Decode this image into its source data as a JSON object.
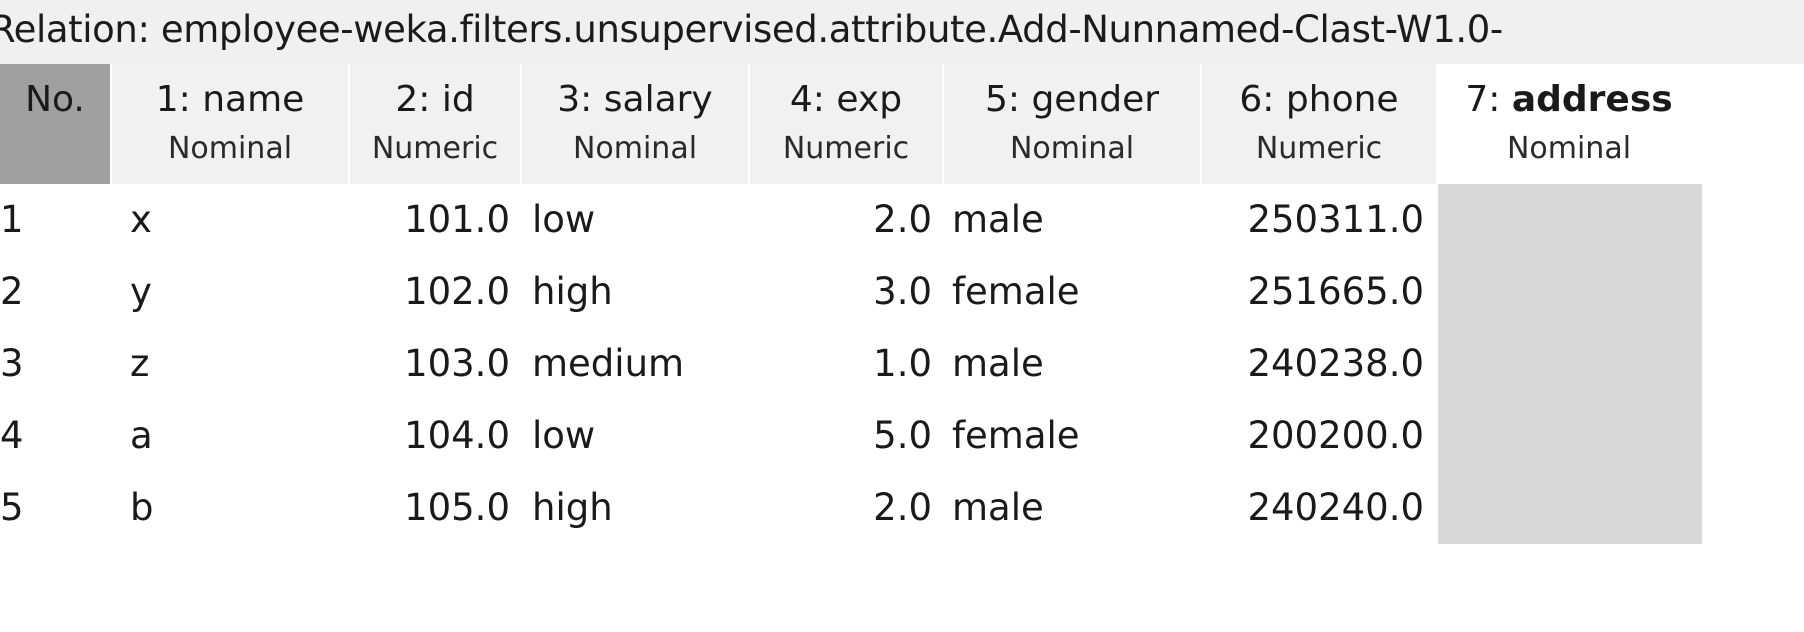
{
  "relation": {
    "label": "Relation: employee-weka.filters.unsupervised.attribute.Add-Nunnamed-Clast-W1.0-"
  },
  "columns": [
    {
      "num": "No.",
      "name": "",
      "type": ""
    },
    {
      "num": "1:",
      "name": "name",
      "type": "Nominal"
    },
    {
      "num": "2:",
      "name": "id",
      "type": "Numeric"
    },
    {
      "num": "3:",
      "name": "salary",
      "type": "Nominal"
    },
    {
      "num": "4:",
      "name": "exp",
      "type": "Numeric"
    },
    {
      "num": "5:",
      "name": "gender",
      "type": "Nominal"
    },
    {
      "num": "6:",
      "name": "phone",
      "type": "Numeric"
    },
    {
      "num": "7:",
      "name": "address",
      "type": "Nominal"
    }
  ],
  "rows": [
    {
      "no": "1",
      "name": "x",
      "id": "101.0",
      "salary": "low",
      "exp": "2.0",
      "gender": "male",
      "phone": "250311.0",
      "address": ""
    },
    {
      "no": "2",
      "name": "y",
      "id": "102.0",
      "salary": "high",
      "exp": "3.0",
      "gender": "female",
      "phone": "251665.0",
      "address": ""
    },
    {
      "no": "3",
      "name": "z",
      "id": "103.0",
      "salary": "medium",
      "exp": "1.0",
      "gender": "male",
      "phone": "240238.0",
      "address": ""
    },
    {
      "no": "4",
      "name": "a",
      "id": "104.0",
      "salary": "low",
      "exp": "5.0",
      "gender": "female",
      "phone": "200200.0",
      "address": ""
    },
    {
      "no": "5",
      "name": "b",
      "id": "105.0",
      "salary": "high",
      "exp": "2.0",
      "gender": "male",
      "phone": "240240.0",
      "address": ""
    }
  ],
  "colors": {
    "header_bg": "#f1f1f1",
    "no_header_bg": "#a0a0a0",
    "missing_cell_bg": "#d8d8d8",
    "relation_bar_bg": "#f0f0f0"
  }
}
